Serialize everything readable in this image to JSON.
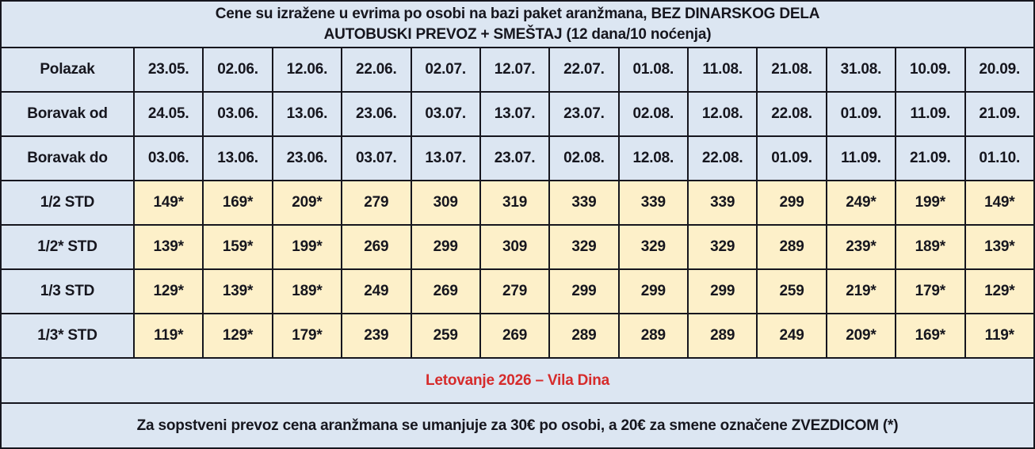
{
  "table": {
    "title_line1": "Cene su izražene u evrima po osobi na bazi paket aranžmana, BEZ DINARSKOG DELA",
    "title_line2": "AUTOBUSKI PREVOZ + SMEŠTAJ (12 dana/10 noćenja)",
    "date_rows": [
      {
        "label": "Polazak",
        "values": [
          "23.05.",
          "02.06.",
          "12.06.",
          "22.06.",
          "02.07.",
          "12.07.",
          "22.07.",
          "01.08.",
          "11.08.",
          "21.08.",
          "31.08.",
          "10.09.",
          "20.09."
        ]
      },
      {
        "label": "Boravak od",
        "values": [
          "24.05.",
          "03.06.",
          "13.06.",
          "23.06.",
          "03.07.",
          "13.07.",
          "23.07.",
          "02.08.",
          "12.08.",
          "22.08.",
          "01.09.",
          "11.09.",
          "21.09."
        ]
      },
      {
        "label": "Boravak do",
        "values": [
          "03.06.",
          "13.06.",
          "23.06.",
          "03.07.",
          "13.07.",
          "23.07.",
          "02.08.",
          "12.08.",
          "22.08.",
          "01.09.",
          "11.09.",
          "21.09.",
          "01.10."
        ]
      }
    ],
    "price_rows": [
      {
        "label": "1/2 STD",
        "values": [
          "149*",
          "169*",
          "209*",
          "279",
          "309",
          "319",
          "339",
          "339",
          "339",
          "299",
          "249*",
          "199*",
          "149*"
        ]
      },
      {
        "label": "1/2* STD",
        "values": [
          "139*",
          "159*",
          "199*",
          "269",
          "299",
          "309",
          "329",
          "329",
          "329",
          "289",
          "239*",
          "189*",
          "139*"
        ]
      },
      {
        "label": "1/3 STD",
        "values": [
          "129*",
          "139*",
          "189*",
          "249",
          "269",
          "279",
          "299",
          "299",
          "299",
          "259",
          "219*",
          "179*",
          "129*"
        ]
      },
      {
        "label": "1/3* STD",
        "values": [
          "119*",
          "129*",
          "179*",
          "239",
          "259",
          "269",
          "289",
          "289",
          "289",
          "249",
          "209*",
          "169*",
          "119*"
        ]
      }
    ],
    "footer_title": "Letovanje 2026 – Vila Dina",
    "footer_note": "Za sopstveni prevoz cena aranžmana se umanjuje za 30€ po osobi, a 20€ za smene označene ZVEZDICOM (*)"
  },
  "colors": {
    "header_background": "#dce6f2",
    "price_background": "#fdf0c9",
    "border": "#16161e",
    "footer_title_red": "#d62b2b",
    "text": "#16161e"
  }
}
